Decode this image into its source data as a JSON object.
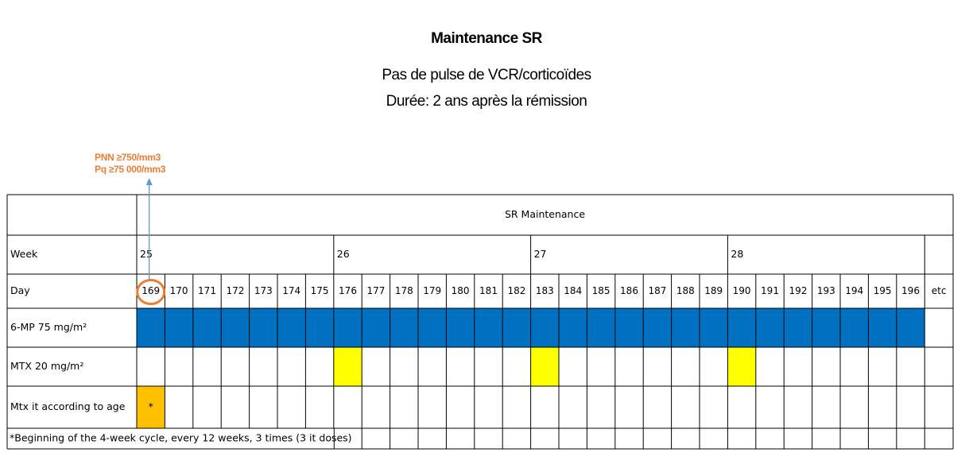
{
  "header": {
    "title": "Maintenance SR",
    "subtitle_line1": "Pas de pulse de VCR/corticoïdes",
    "subtitle_line2": "Durée: 2 ans après la rémission"
  },
  "conditions": [
    "PNN ≥750/mm3",
    "Pq ≥75 000/mm3"
  ],
  "table": {
    "header": "SR Maintenance",
    "row_labels": {
      "week": "Week",
      "day": "Day",
      "mp": "6-MP 75 mg/m²",
      "mtx": "MTX 20 mg/m²",
      "mtx_it": "Mtx it according to age"
    },
    "weeks": [
      "25",
      "26",
      "27",
      "28"
    ],
    "days": [
      "169",
      "170",
      "171",
      "172",
      "173",
      "174",
      "175",
      "176",
      "177",
      "178",
      "179",
      "180",
      "181",
      "182",
      "183",
      "184",
      "185",
      "186",
      "187",
      "188",
      "189",
      "190",
      "191",
      "192",
      "193",
      "194",
      "195",
      "196"
    ],
    "etc_label": "etc",
    "circled_day": "169",
    "mtx_days": [
      "176",
      "183",
      "190"
    ],
    "mtx_it_days": [
      "169"
    ],
    "mtx_it_marker": "*",
    "footnote": "*Beginning of the 4-week cycle, every 12 weeks, 3 times (3 it doses)",
    "colors": {
      "mp": "#0070C0",
      "mtx": "#FFFF00",
      "mtx_it": "#FFC000",
      "header_text": "#1F4E79",
      "accent": "#ED7D31",
      "arrow": "#5B9BD5"
    }
  }
}
